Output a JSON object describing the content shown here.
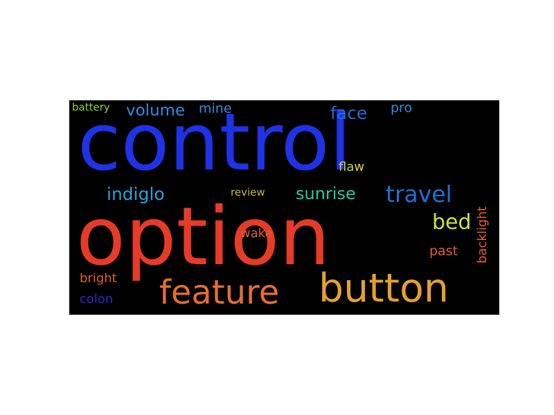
{
  "word_cloud": {
    "background": "#000000",
    "words": [
      {
        "id": "control",
        "text": "control",
        "color": "#1f32e6"
      },
      {
        "id": "option",
        "text": "option",
        "color": "#e63b26"
      },
      {
        "id": "button",
        "text": "button",
        "color": "#e3a12c"
      },
      {
        "id": "feature",
        "text": "feature",
        "color": "#e76f2a"
      },
      {
        "id": "travel",
        "text": "travel",
        "color": "#1f6fd8"
      },
      {
        "id": "sunrise",
        "text": "sunrise",
        "color": "#26c8a8"
      },
      {
        "id": "indiglo",
        "text": "indiglo",
        "color": "#26a4d8"
      },
      {
        "id": "bed",
        "text": "bed",
        "color": "#c8e63a"
      },
      {
        "id": "face",
        "text": "face",
        "color": "#1f6fd8"
      },
      {
        "id": "volume",
        "text": "volume",
        "color": "#2c8ee0"
      },
      {
        "id": "mine",
        "text": "mine",
        "color": "#2c8ee0"
      },
      {
        "id": "pro",
        "text": "pro",
        "color": "#2c8ee0"
      },
      {
        "id": "flaw",
        "text": "flaw",
        "color": "#d6d23a"
      },
      {
        "id": "review",
        "text": "review",
        "color": "#c8b82c"
      },
      {
        "id": "wake",
        "text": "wake",
        "color": "#e2602a"
      },
      {
        "id": "past",
        "text": "past",
        "color": "#e2602a"
      },
      {
        "id": "backlight",
        "text": "backlight",
        "color": "#e2602a"
      },
      {
        "id": "bright",
        "text": "bright",
        "color": "#e2602a"
      },
      {
        "id": "colon",
        "text": "colon",
        "color": "#2a2ad6"
      },
      {
        "id": "battery",
        "text": "battery",
        "color": "#8ed63a"
      }
    ]
  }
}
